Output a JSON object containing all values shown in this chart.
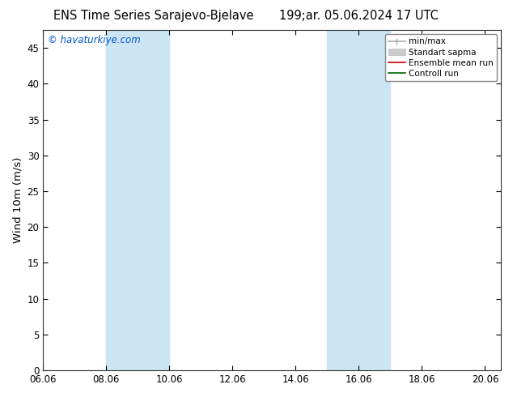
{
  "title_left": "ENS Time Series Sarajevo-Bjelave",
  "title_right": "199;ar. 05.06.2024 17 UTC",
  "ylabel": "Wind 10m (m/s)",
  "watermark": "© havaturkiye.com",
  "ylim": [
    0,
    47.5
  ],
  "yticks": [
    0,
    5,
    10,
    15,
    20,
    25,
    30,
    35,
    40,
    45
  ],
  "xlim_start": 0.0,
  "xlim_end": 14.5,
  "xtick_labels": [
    "06.06",
    "08.06",
    "10.06",
    "12.06",
    "14.06",
    "16.06",
    "18.06",
    "20.06"
  ],
  "xtick_positions": [
    0,
    2,
    4,
    6,
    8,
    10,
    12,
    14
  ],
  "shaded_regions": [
    {
      "xmin": 2.0,
      "xmax": 4.0,
      "color": "#cce5f5"
    },
    {
      "xmin": 9.0,
      "xmax": 11.0,
      "color": "#cce5f5"
    }
  ],
  "legend_entries": [
    {
      "label": "min/max",
      "color": "#aaaaaa",
      "lw": 1.2,
      "style": "minmax"
    },
    {
      "label": "Standart sapma",
      "color": "#cccccc",
      "lw": 6,
      "style": "fill"
    },
    {
      "label": "Ensemble mean run",
      "color": "#cc0000",
      "lw": 1.2,
      "style": "line"
    },
    {
      "label": "Controll run",
      "color": "#006600",
      "lw": 1.2,
      "style": "line"
    }
  ],
  "bg_color": "#ffffff",
  "plot_bg_color": "#ffffff",
  "title_fontsize": 10.5,
  "tick_fontsize": 8.5,
  "ylabel_fontsize": 9.5,
  "watermark_color": "#0055cc",
  "watermark_fontsize": 8.5
}
